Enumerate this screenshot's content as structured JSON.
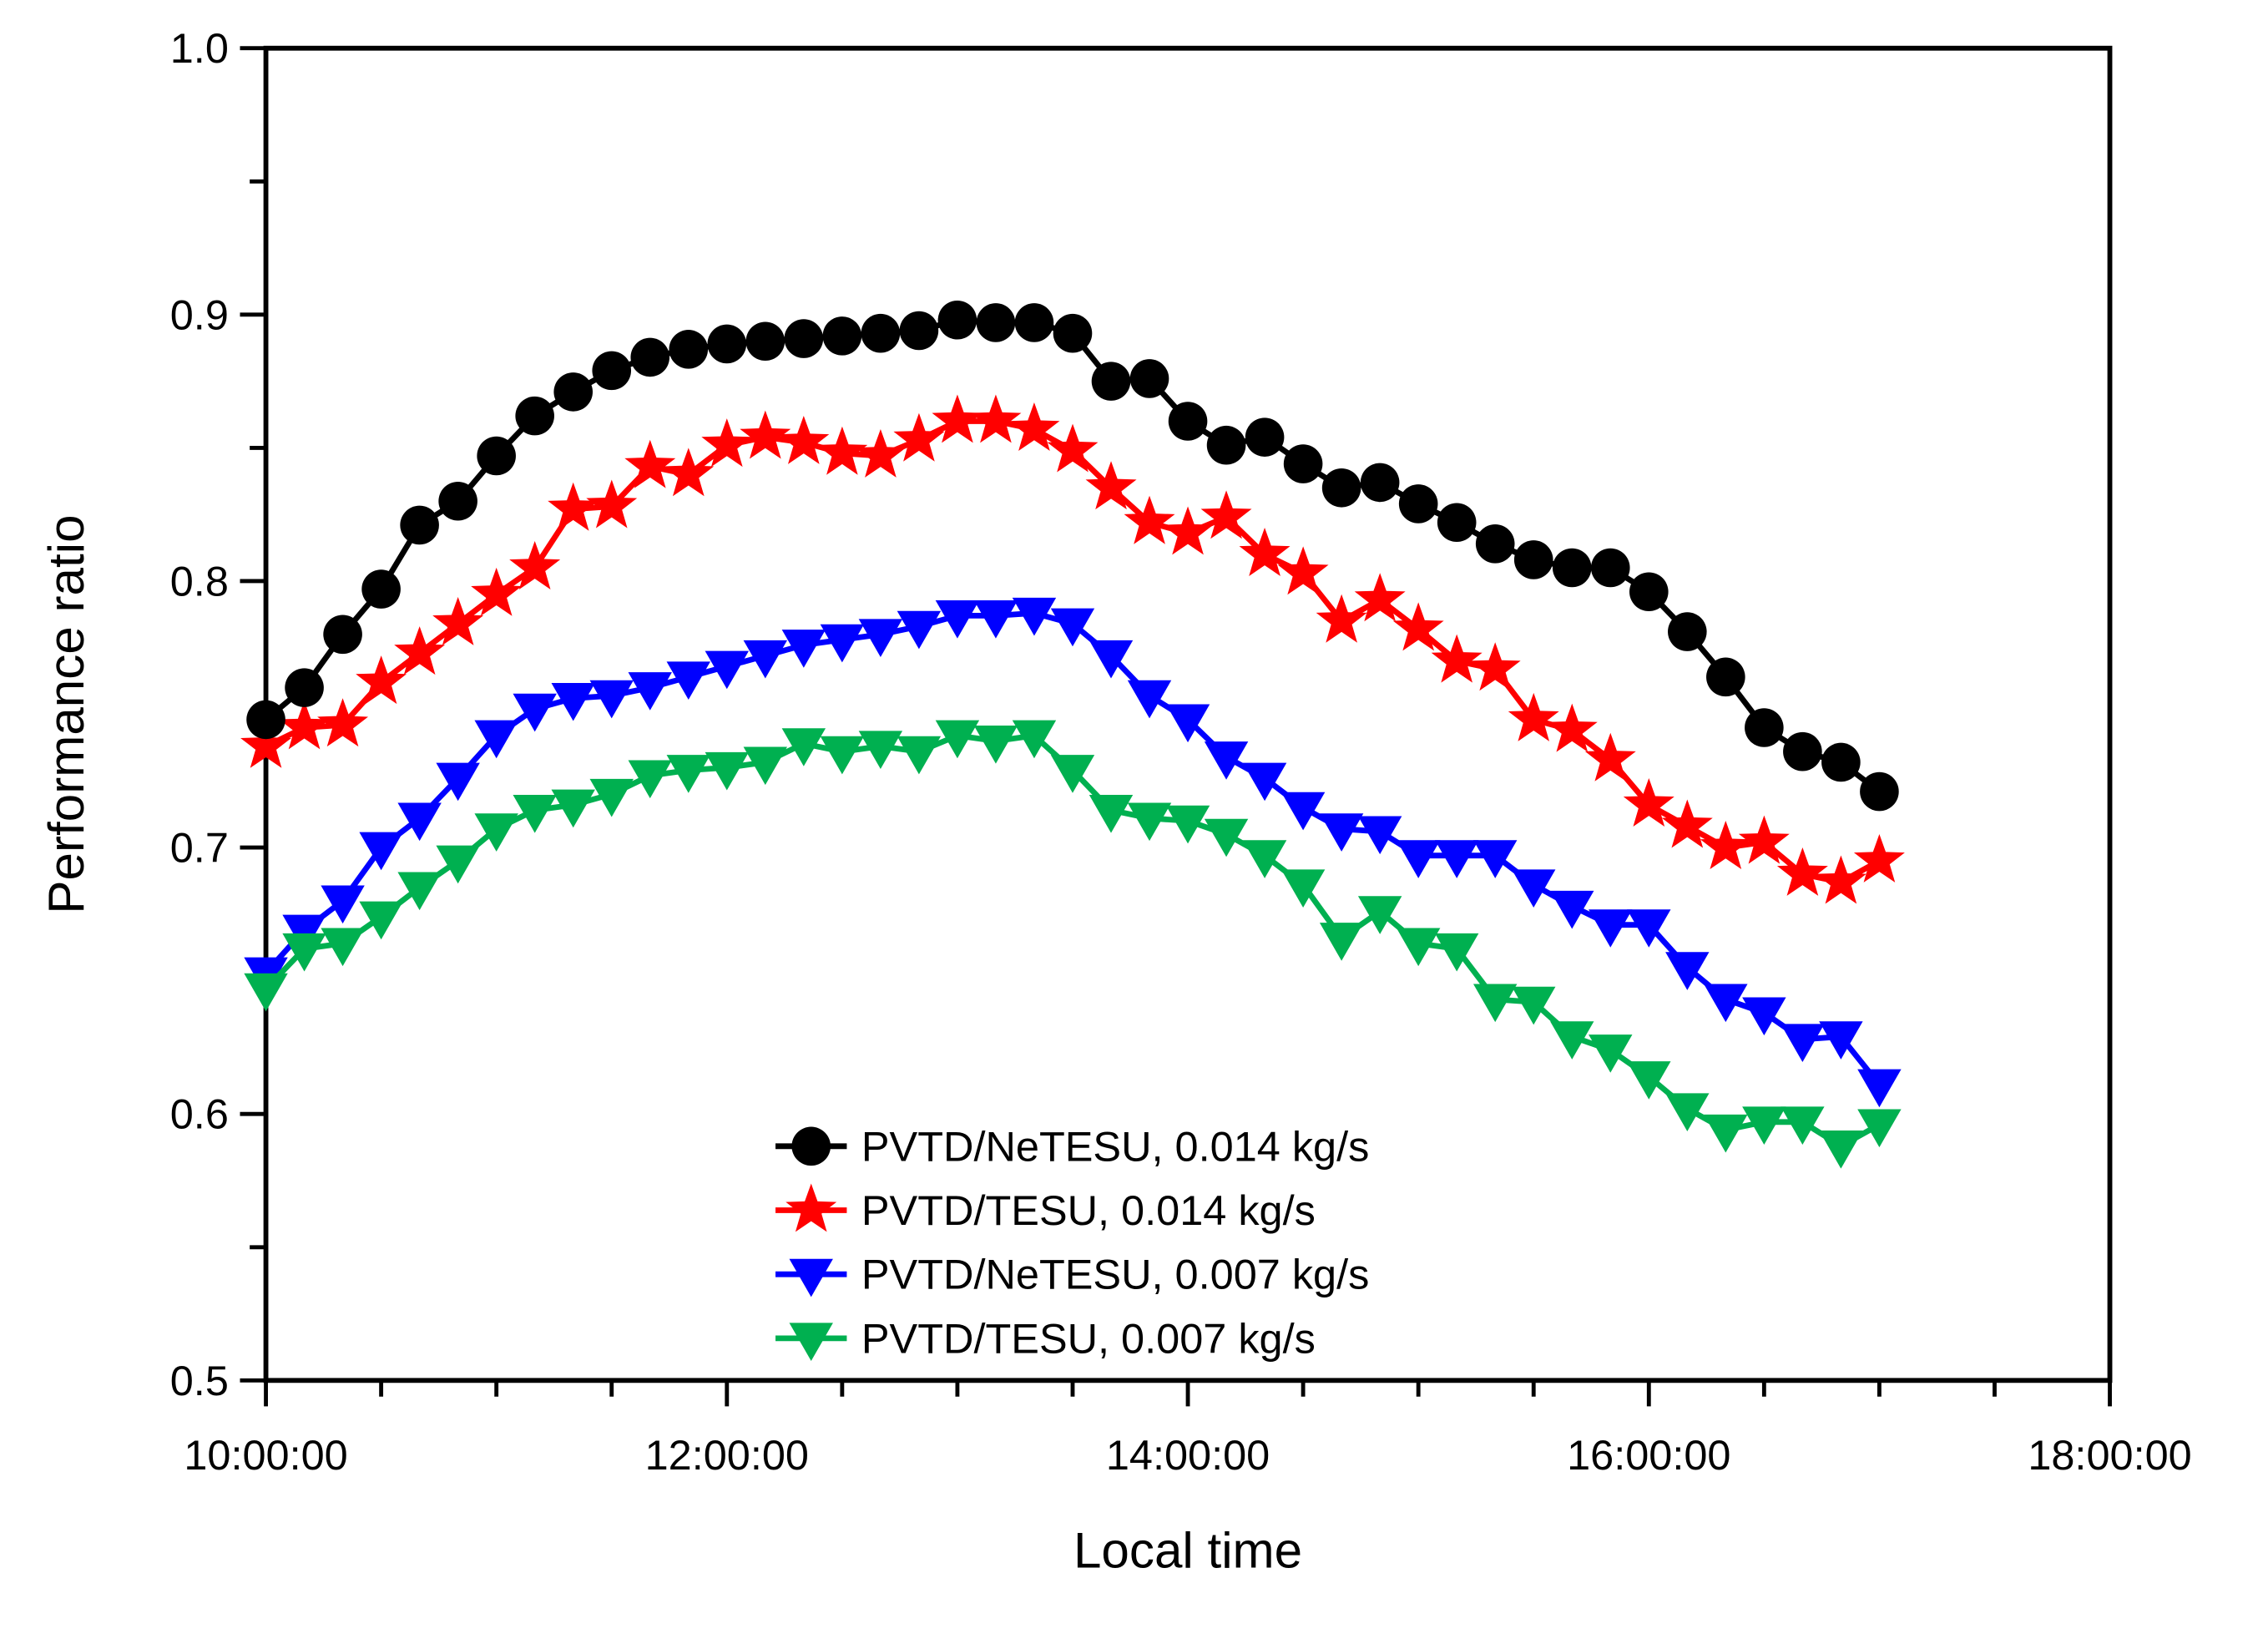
{
  "chart_data": {
    "type": "line",
    "title": "",
    "xlabel": "Local time",
    "ylabel": "Performance ratio",
    "grid": false,
    "legend_position": "inside-bottom-center",
    "x_axis": {
      "start_minutes": 600,
      "end_minutes": 1080,
      "major_tick_minutes": [
        600,
        720,
        840,
        960,
        1080
      ],
      "major_tick_labels": [
        "10:00:00",
        "12:00:00",
        "14:00:00",
        "16:00:00",
        "18:00:00"
      ],
      "minor_tick_minutes": [
        630,
        660,
        690,
        750,
        780,
        810,
        870,
        900,
        930,
        990,
        1020,
        1050
      ]
    },
    "y_axis": {
      "min": 0.5,
      "max": 1.0,
      "major_ticks": [
        0.5,
        0.6,
        0.7,
        0.8,
        0.9,
        1.0
      ],
      "major_tick_labels": [
        "0.5",
        "0.6",
        "0.7",
        "0.8",
        "0.9",
        "1.0"
      ],
      "minor_ticks": [
        0.55,
        0.65,
        0.75,
        0.85,
        0.95
      ]
    },
    "sample_start_minutes": 600,
    "sample_step_minutes": 10,
    "series": [
      {
        "name": "PVTD/NeTESU, 0.014 kg/s",
        "color": "#000000",
        "marker": "circle",
        "values": [
          0.748,
          0.76,
          0.78,
          0.797,
          0.821,
          0.83,
          0.847,
          0.862,
          0.871,
          0.879,
          0.884,
          0.887,
          0.889,
          0.89,
          0.891,
          0.892,
          0.893,
          0.894,
          0.898,
          0.897,
          0.897,
          0.893,
          0.875,
          0.876,
          0.86,
          0.851,
          0.854,
          0.844,
          0.835,
          0.837,
          0.829,
          0.822,
          0.814,
          0.808,
          0.805,
          0.805,
          0.796,
          0.781,
          0.764,
          0.745,
          0.736,
          0.732,
          0.721
        ]
      },
      {
        "name": "PVTD/TESU, 0.014 kg/s",
        "color": "#ff0000",
        "marker": "star",
        "values": [
          0.738,
          0.745,
          0.746,
          0.762,
          0.773,
          0.784,
          0.795,
          0.805,
          0.827,
          0.828,
          0.843,
          0.84,
          0.851,
          0.854,
          0.852,
          0.848,
          0.847,
          0.853,
          0.86,
          0.86,
          0.857,
          0.849,
          0.835,
          0.822,
          0.818,
          0.824,
          0.81,
          0.803,
          0.785,
          0.793,
          0.782,
          0.77,
          0.767,
          0.748,
          0.744,
          0.733,
          0.716,
          0.708,
          0.7,
          0.702,
          0.69,
          0.687,
          0.695
        ]
      },
      {
        "name": "PVTD/NeTESU, 0.007 kg/s",
        "color": "#0000ff",
        "marker": "triangle-down",
        "values": [
          0.653,
          0.669,
          0.68,
          0.7,
          0.711,
          0.726,
          0.742,
          0.752,
          0.756,
          0.757,
          0.76,
          0.764,
          0.768,
          0.772,
          0.776,
          0.778,
          0.78,
          0.783,
          0.787,
          0.787,
          0.788,
          0.784,
          0.772,
          0.757,
          0.748,
          0.734,
          0.726,
          0.715,
          0.707,
          0.706,
          0.697,
          0.697,
          0.697,
          0.686,
          0.678,
          0.671,
          0.671,
          0.655,
          0.643,
          0.638,
          0.628,
          0.629,
          0.611
        ]
      },
      {
        "name": "PVTD/TESU, 0.007 kg/s",
        "color": "#00b050",
        "marker": "triangle-down",
        "values": [
          0.647,
          0.662,
          0.664,
          0.674,
          0.685,
          0.695,
          0.707,
          0.714,
          0.716,
          0.72,
          0.727,
          0.729,
          0.73,
          0.732,
          0.739,
          0.736,
          0.738,
          0.736,
          0.742,
          0.74,
          0.742,
          0.729,
          0.714,
          0.711,
          0.71,
          0.705,
          0.697,
          0.686,
          0.666,
          0.676,
          0.664,
          0.662,
          0.643,
          0.642,
          0.629,
          0.624,
          0.614,
          0.602,
          0.594,
          0.597,
          0.597,
          0.588,
          0.596
        ]
      }
    ]
  }
}
